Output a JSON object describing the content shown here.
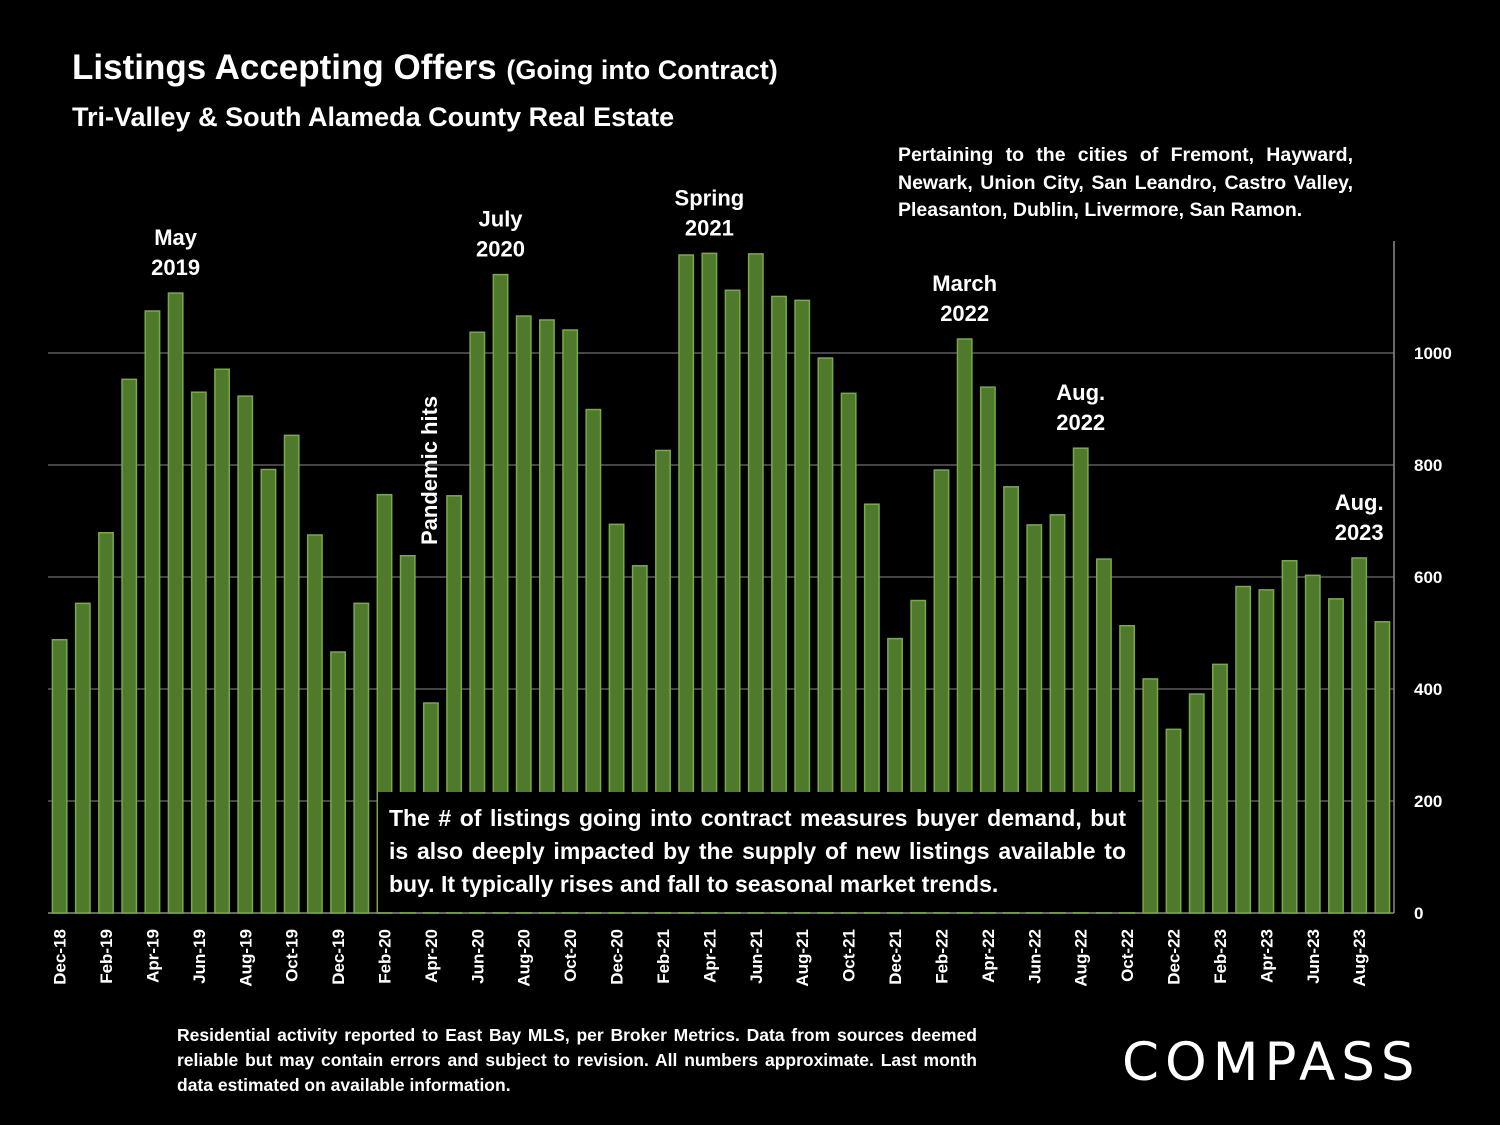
{
  "header": {
    "title": "Listings Accepting Offers",
    "title_suffix": "(Going into Contract)",
    "subtitle": "Tri-Valley & South Alameda County Real Estate"
  },
  "pertaining_note": "Pertaining to the cities of Fremont, Hayward, Newark, Union City, San Leandro, Castro Valley, Pleasanton, Dublin, Livermore, San Ramon.",
  "callout": "The # of listings going into contract measures buyer demand, but is also deeply impacted by the supply of new listings available to buy. It typically rises and fall to seasonal market trends.",
  "footer": "Residential activity reported to East Bay MLS, per Broker Metrics. Data from sources deemed reliable but may contain errors and subject to revision.  All numbers approximate. Last month data estimated on available information.",
  "logo": "COMPASS",
  "colors": {
    "bar_fill": "#4f7a2c",
    "bar_edge": "#7aa84a",
    "gridline": "#8a8a8a",
    "background": "#000000"
  },
  "chart_data": {
    "type": "bar",
    "title": "Listings Accepting Offers (Going into Contract)",
    "xlabel": "",
    "ylabel": "",
    "ylim": [
      0,
      1200
    ],
    "yticks": [
      0,
      200,
      400,
      600,
      800,
      1000
    ],
    "y_axis_side": "right",
    "grid": true,
    "categories": [
      "Dec-18",
      "Jan-19",
      "Feb-19",
      "Mar-19",
      "Apr-19",
      "May-19",
      "Jun-19",
      "Jul-19",
      "Aug-19",
      "Sep-19",
      "Oct-19",
      "Nov-19",
      "Dec-19",
      "Jan-20",
      "Feb-20",
      "Mar-20",
      "Apr-20",
      "May-20",
      "Jun-20",
      "Jul-20",
      "Aug-20",
      "Sep-20",
      "Oct-20",
      "Nov-20",
      "Dec-20",
      "Jan-21",
      "Feb-21",
      "Mar-21",
      "Apr-21",
      "May-21",
      "Jun-21",
      "Jul-21",
      "Aug-21",
      "Sep-21",
      "Oct-21",
      "Nov-21",
      "Dec-21",
      "Jan-22",
      "Feb-22",
      "Mar-22",
      "Apr-22",
      "May-22",
      "Jun-22",
      "Jul-22",
      "Aug-22",
      "Sep-22",
      "Oct-22",
      "Nov-22",
      "Dec-22",
      "Jan-23",
      "Feb-23",
      "Mar-23",
      "Apr-23",
      "May-23",
      "Jun-23",
      "Jul-23",
      "Aug-23",
      "Sep-23"
    ],
    "tick_labels": [
      "Dec-18",
      "",
      "Feb-19",
      "",
      "Apr-19",
      "",
      "Jun-19",
      "",
      "Aug-19",
      "",
      "Oct-19",
      "",
      "Dec-19",
      "",
      "Feb-20",
      "",
      "Apr-20",
      "",
      "Jun-20",
      "",
      "Aug-20",
      "",
      "Oct-20",
      "",
      "Dec-20",
      "",
      "Feb-21",
      "",
      "Apr-21",
      "",
      "Jun-21",
      "",
      "Aug-21",
      "",
      "Oct-21",
      "",
      "Dec-21",
      "",
      "Feb-22",
      "",
      "Apr-22",
      "",
      "Jun-22",
      "",
      "Aug-22",
      "",
      "Oct-22",
      "",
      "Dec-22",
      "",
      "Feb-23",
      "",
      "Apr-23",
      "",
      "Jun-23",
      "",
      "Aug-23",
      ""
    ],
    "values": [
      488,
      553,
      679,
      953,
      1075,
      1107,
      930,
      971,
      923,
      792,
      853,
      675,
      466,
      553,
      747,
      638,
      375,
      745,
      1037,
      1140,
      1066,
      1059,
      1041,
      899,
      694,
      620,
      826,
      1175,
      1178,
      1112,
      1177,
      1101,
      1094,
      991,
      928,
      730,
      490,
      558,
      791,
      1025,
      939,
      761,
      693,
      711,
      830,
      632,
      513,
      418,
      328,
      391,
      444,
      583,
      577,
      629,
      603,
      561,
      634,
      520
    ],
    "annotations": [
      {
        "index": 5,
        "lines": [
          "May",
          "2019"
        ],
        "rotated": false
      },
      {
        "index": 16,
        "lines": [
          "Pandemic hits"
        ],
        "rotated": true
      },
      {
        "index": 19,
        "lines": [
          "July",
          "2020"
        ],
        "rotated": false
      },
      {
        "index": 28,
        "lines": [
          "Spring",
          "2021"
        ],
        "rotated": false
      },
      {
        "index": 39,
        "lines": [
          "March",
          "2022"
        ],
        "rotated": false
      },
      {
        "index": 44,
        "lines": [
          "Aug.",
          "2022"
        ],
        "rotated": false
      },
      {
        "index": 56,
        "lines": [
          "Aug.",
          "2023"
        ],
        "rotated": false
      }
    ]
  }
}
